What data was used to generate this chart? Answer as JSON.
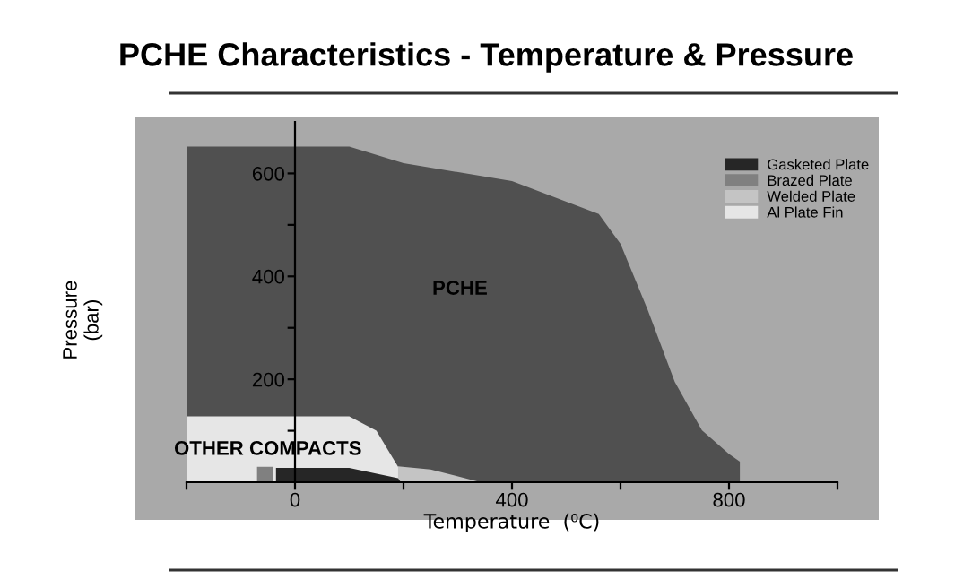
{
  "chart_data": {
    "type": "area",
    "title": "PCHE Characteristics - Temperature & Pressure",
    "xlabel": "Temperature  (⁰C)",
    "ylabel": "Pressure\n(bar)",
    "xlim": [
      -200,
      1000
    ],
    "ylim": [
      0,
      700
    ],
    "xticks": [
      {
        "value": -200,
        "label": null
      },
      0,
      {
        "value": 200,
        "label": null
      },
      400,
      {
        "value": 600,
        "label": null
      },
      800,
      {
        "value": 1000,
        "label": null
      }
    ],
    "yticks": [
      {
        "value": 100,
        "label": null
      },
      200,
      {
        "value": 300,
        "label": null
      },
      400,
      {
        "value": 500,
        "label": null
      },
      600
    ],
    "series": [
      {
        "color": "#505050",
        "x": [
          -200,
          100,
          200,
          400,
          560,
          600,
          650,
          700,
          750,
          800,
          820,
          820
        ],
        "values": [
          652,
          652,
          620,
          585,
          521,
          463,
          335,
          195,
          101,
          55,
          40,
          0
        ]
      },
      {
        "name": "Al Plate Fin",
        "color": "#e6e6e6",
        "x": [
          -200,
          100,
          150,
          190,
          200
        ],
        "values": [
          128,
          128,
          100,
          30,
          0
        ]
      },
      {
        "name": "Welded Plate",
        "color": "#c4c4c4",
        "x": [
          190,
          250,
          342
        ],
        "values": [
          31,
          25,
          0
        ]
      },
      {
        "name": "Brazed Plate",
        "color": "#808080",
        "x": [
          -70,
          -40,
          -40
        ],
        "values": [
          30,
          30,
          0
        ]
      },
      {
        "name": "Gasketed Plate",
        "color": "#262626",
        "x": [
          -35,
          100,
          190,
          195
        ],
        "values": [
          28,
          28,
          8,
          0
        ]
      }
    ],
    "annotations": [
      "PCHE",
      "OTHER COMPACTS"
    ],
    "legend": "top right",
    "grid": false
  }
}
